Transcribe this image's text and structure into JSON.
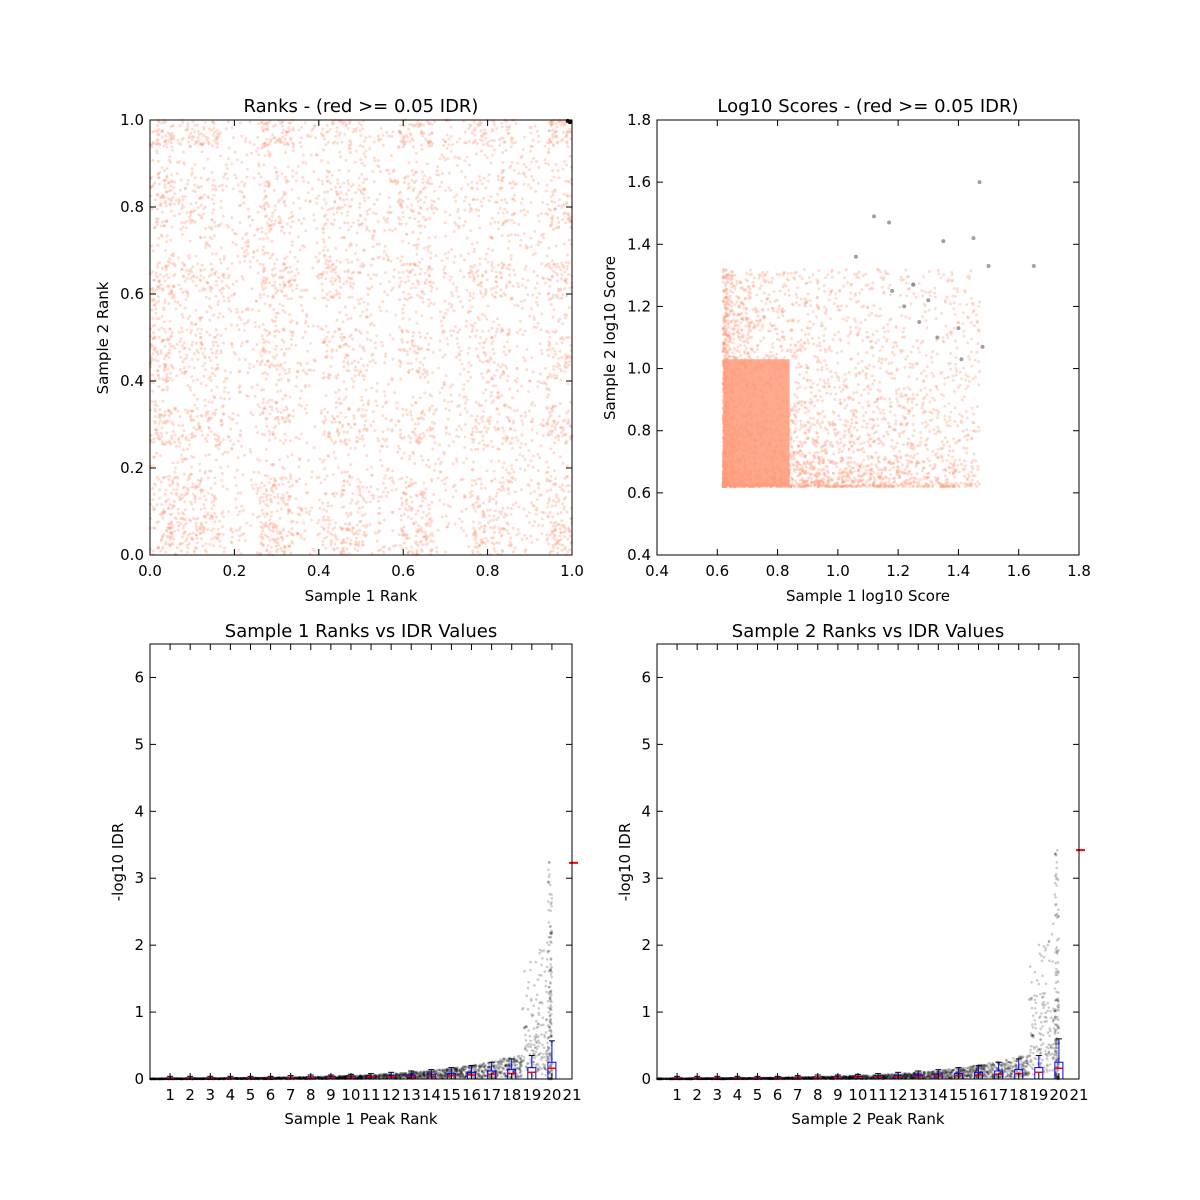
{
  "chart_data": [
    {
      "type": "scatter",
      "title": "Ranks - (red >= 0.05 IDR)",
      "xlabel": "Sample 1 Rank",
      "ylabel": "Sample 2 Rank",
      "xlim": [
        0.0,
        1.0
      ],
      "ylim": [
        0.0,
        1.0
      ],
      "x_ticks": [
        "0.0",
        "0.2",
        "0.4",
        "0.6",
        "0.8",
        "1.0"
      ],
      "y_ticks": [
        "0.0",
        "0.2",
        "0.4",
        "0.6",
        "0.8",
        "1.0"
      ],
      "colors": {
        "pass": "#ff9b7a",
        "fail": "#000000"
      },
      "series": [
        {
          "points": [
            [
              0.05,
              0.05
            ],
            [
              0.12,
              0.5
            ],
            [
              0.46,
              0.5
            ],
            [
              0.81,
              0.5
            ],
            [
              0.12,
              0.17
            ],
            [
              0.46,
              0.17
            ],
            [
              0.81,
              0.17
            ],
            [
              0.12,
              0.73
            ],
            [
              0.46,
              0.73
            ],
            [
              0.81,
              0.73
            ],
            [
              0.3,
              0.35
            ],
            [
              0.63,
              0.35
            ],
            [
              0.3,
              0.88
            ],
            [
              0.63,
              0.88
            ],
            [
              0.95,
              0.95
            ],
            [
              0.2,
              0.6
            ],
            [
              0.55,
              0.25
            ],
            [
              0.9,
              0.4
            ],
            [
              0.35,
              0.05
            ],
            [
              0.7,
              0.95
            ]
          ]
        },
        {
          "points": [
            [
              0.995,
              0.995
            ],
            [
              0.99,
              0.998
            ]
          ]
        }
      ]
    },
    {
      "type": "scatter",
      "title": "Log10 Scores - (red >= 0.05 IDR)",
      "xlabel": "Sample 1 log10 Score",
      "ylabel": "Sample 2 log10 Score",
      "xlim": [
        0.4,
        1.8
      ],
      "ylim": [
        0.4,
        1.8
      ],
      "x_ticks": [
        "0.4",
        "0.6",
        "0.8",
        "1.0",
        "1.2",
        "1.4",
        "1.6",
        "1.8"
      ],
      "y_ticks": [
        "0.4",
        "0.6",
        "0.8",
        "1.0",
        "1.2",
        "1.4",
        "1.6",
        "1.8"
      ],
      "colors": {
        "pass": "#ff9b7a",
        "fail": "#888888"
      },
      "series": [
        {
          "points": [
            [
              0.62,
              0.62
            ],
            [
              0.7,
              0.8
            ],
            [
              0.8,
              1.0
            ],
            [
              0.95,
              0.75
            ],
            [
              1.05,
              0.9
            ],
            [
              1.2,
              0.7
            ],
            [
              0.65,
              1.3
            ],
            [
              1.3,
              0.65
            ],
            [
              1.45,
              0.8
            ],
            [
              1.0,
              1.2
            ]
          ]
        },
        {
          "points": [
            [
              1.47,
              1.6
            ],
            [
              1.25,
              1.27
            ],
            [
              1.22,
              1.2
            ],
            [
              1.27,
              1.15
            ],
            [
              1.3,
              1.22
            ],
            [
              1.45,
              1.42
            ],
            [
              1.65,
              1.33
            ],
            [
              1.5,
              1.33
            ],
            [
              1.35,
              1.41
            ],
            [
              1.12,
              1.49
            ],
            [
              1.17,
              1.47
            ],
            [
              1.06,
              1.36
            ],
            [
              1.25,
              1.27
            ],
            [
              1.4,
              1.13
            ],
            [
              1.48,
              1.07
            ],
            [
              1.41,
              1.03
            ],
            [
              1.18,
              1.25
            ],
            [
              1.33,
              1.1
            ]
          ]
        }
      ]
    },
    {
      "type": "scatter",
      "title": "Sample 1 Ranks vs IDR Values",
      "xlabel": "Sample 1 Peak Rank",
      "ylabel": "-log10 IDR",
      "xlim": [
        0,
        21
      ],
      "ylim": [
        0,
        6.5
      ],
      "x_ticks": [
        "1",
        "2",
        "3",
        "4",
        "5",
        "6",
        "7",
        "8",
        "9",
        "10",
        "11",
        "12",
        "13",
        "14",
        "15",
        "16",
        "17",
        "18",
        "19",
        "20",
        "21"
      ],
      "y_ticks": [
        "0",
        "1",
        "2",
        "3",
        "4",
        "5",
        "6"
      ],
      "box_medians": [
        0.01,
        0.01,
        0.01,
        0.01,
        0.01,
        0.01,
        0.015,
        0.02,
        0.02,
        0.025,
        0.03,
        0.035,
        0.04,
        0.045,
        0.05,
        0.06,
        0.07,
        0.08,
        0.1,
        0.16
      ],
      "box_q3": [
        0.02,
        0.02,
        0.02,
        0.02,
        0.02,
        0.02,
        0.025,
        0.03,
        0.03,
        0.035,
        0.04,
        0.05,
        0.06,
        0.07,
        0.08,
        0.1,
        0.12,
        0.14,
        0.17,
        0.25
      ],
      "whisker_top": [
        0.04,
        0.04,
        0.04,
        0.04,
        0.04,
        0.04,
        0.05,
        0.06,
        0.06,
        0.07,
        0.08,
        0.1,
        0.12,
        0.14,
        0.17,
        0.2,
        0.25,
        0.3,
        0.35,
        0.57
      ],
      "outlier_max": 3.25,
      "side_marker": 3.23,
      "colors": {
        "points": "#000000",
        "box": "#0000ff",
        "median": "#ff0000"
      }
    },
    {
      "type": "scatter",
      "title": "Sample 2 Ranks vs IDR Values",
      "xlabel": "Sample 2 Peak Rank",
      "ylabel": "-log10 IDR",
      "xlim": [
        0,
        21
      ],
      "ylim": [
        0,
        6.5
      ],
      "x_ticks": [
        "1",
        "2",
        "3",
        "4",
        "5",
        "6",
        "7",
        "8",
        "9",
        "10",
        "11",
        "12",
        "13",
        "14",
        "15",
        "16",
        "17",
        "18",
        "19",
        "20",
        "21"
      ],
      "y_ticks": [
        "0",
        "1",
        "2",
        "3",
        "4",
        "5",
        "6"
      ],
      "box_medians": [
        0.01,
        0.01,
        0.01,
        0.01,
        0.01,
        0.01,
        0.015,
        0.02,
        0.02,
        0.025,
        0.03,
        0.035,
        0.04,
        0.045,
        0.05,
        0.06,
        0.07,
        0.08,
        0.1,
        0.16
      ],
      "box_q3": [
        0.02,
        0.02,
        0.02,
        0.02,
        0.02,
        0.02,
        0.025,
        0.03,
        0.03,
        0.035,
        0.04,
        0.05,
        0.06,
        0.07,
        0.08,
        0.1,
        0.12,
        0.14,
        0.17,
        0.25
      ],
      "whisker_top": [
        0.04,
        0.04,
        0.04,
        0.04,
        0.04,
        0.04,
        0.05,
        0.06,
        0.06,
        0.07,
        0.08,
        0.1,
        0.12,
        0.14,
        0.17,
        0.2,
        0.25,
        0.3,
        0.35,
        0.6
      ],
      "outlier_max": 3.43,
      "side_marker": 3.42,
      "colors": {
        "points": "#000000",
        "box": "#0000ff",
        "median": "#ff0000"
      }
    }
  ]
}
